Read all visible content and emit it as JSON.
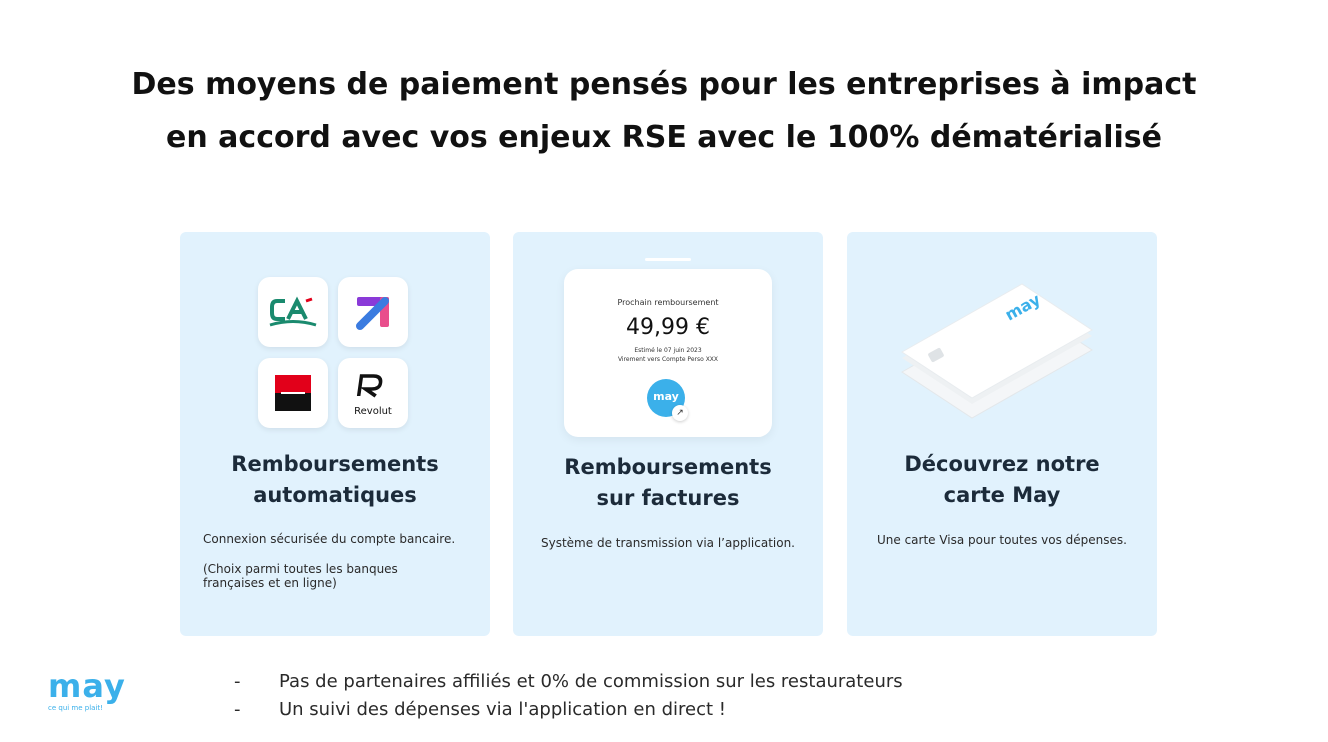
{
  "headline": {
    "line1": "Des moyens de paiement pensés pour les entreprises à impact",
    "line2": "en accord avec vos enjeux RSE avec le 100% dématérialisé"
  },
  "cards": [
    {
      "title_line1": "Remboursements",
      "title_line2": "automatiques",
      "text1": "Connexion sécurisée du compte bancaire.",
      "text2_line1": "(Choix parmi toutes les banques",
      "text2_line2": "françaises et en ligne)",
      "logos": [
        "credit-agricole-logo",
        "arrow-bank-logo",
        "societe-generale-logo",
        "revolut-logo"
      ],
      "revolut_label": "Revolut"
    },
    {
      "title_line1": "Remboursements",
      "title_line2": "sur factures",
      "text1": "Système de transmission via l’application.",
      "phone": {
        "caption": "Prochain remboursement",
        "amount": "49,99 €",
        "estimate": "Estimé le 07 juin 2023",
        "transfer": "Virement vers Compte Perso XXX",
        "badge": "may"
      }
    },
    {
      "title_line1": "Découvrez notre",
      "title_line2": "carte May",
      "text1": "Une carte Visa pour toutes vos dépenses.",
      "card_brand": "may"
    }
  ],
  "footer": {
    "brand": "may",
    "tagline": "ce qui me plait!",
    "bullets": [
      "Pas de partenaires affiliés et 0% de commission sur les restaurateurs",
      "Un suivi des dépenses via l'application en direct !"
    ]
  },
  "colors": {
    "card_bg": "#e1f2fd",
    "brand_blue": "#3bb0ea",
    "ca_green": "#1a8a6e",
    "sg_red": "#e2001a"
  }
}
